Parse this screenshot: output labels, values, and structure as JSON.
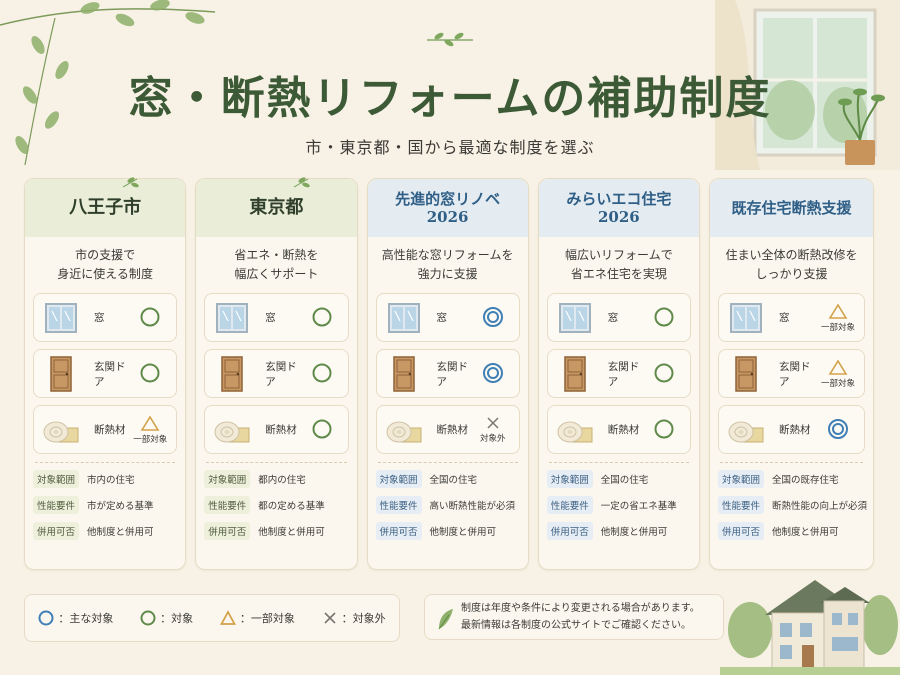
{
  "title": "窓・断熱リフォームの補助制度",
  "subtitle": "市・東京都・国から最適な制度を選ぶ",
  "item_labels": {
    "window": "窓",
    "door": "玄関ドア",
    "insulation": "断熱材"
  },
  "req_labels": {
    "scope": "対象範囲",
    "performance": "性能要件",
    "combination": "併用可否"
  },
  "columns": [
    {
      "name": "八王子市",
      "desc1": "市の支援で",
      "desc2": "身近に使える制度",
      "window": "circle",
      "window_note": "",
      "door": "circle",
      "door_note": "",
      "insulation": "triangle",
      "insulation_note": "一部対象",
      "scope": "市内の住宅",
      "performance": "市が定める基準",
      "combination": "他制度と併用可"
    },
    {
      "name": "東京都",
      "desc1": "省エネ・断熱を",
      "desc2": "幅広くサポート",
      "window": "circle",
      "window_note": "",
      "door": "circle",
      "door_note": "",
      "insulation": "circle",
      "insulation_note": "",
      "scope": "都内の住宅",
      "performance": "都の定める基準",
      "combination": "他制度と併用可"
    },
    {
      "name": "先進的窓リノベ",
      "name2": "2026",
      "desc1": "高性能な窓リフォームを",
      "desc2": "強力に支援",
      "window": "double",
      "window_note": "",
      "door": "double",
      "door_note": "",
      "insulation": "cross",
      "insulation_note": "対象外",
      "scope": "全国の住宅",
      "performance": "高い断熱性能が必須",
      "combination": "他制度と併用可"
    },
    {
      "name": "みらいエコ住宅",
      "name2": "2026",
      "desc1": "幅広いリフォームで",
      "desc2": "省エネ住宅を実現",
      "window": "circle",
      "window_note": "",
      "door": "circle",
      "door_note": "",
      "insulation": "circle",
      "insulation_note": "",
      "scope": "全国の住宅",
      "performance": "一定の省エネ基準",
      "combination": "他制度と併用可"
    },
    {
      "name": "既存住宅断熱支援",
      "desc1": "住まい全体の断熱改修を",
      "desc2": "しっかり支援",
      "window": "triangle",
      "window_note": "一部対象",
      "door": "triangle",
      "door_note": "一部対象",
      "insulation": "double",
      "insulation_note": "",
      "scope": "全国の既存住宅",
      "performance": "断熱性能の向上が必須",
      "combination": "他制度と併用可"
    }
  ],
  "legend": {
    "main": "：主な対象",
    "target": "：対象",
    "partial": "：一部対象",
    "excluded": "：対象外"
  },
  "notes": {
    "line1": "制度は年度や条件により変更される場合があります。",
    "line2": "最新情報は各制度の公式サイトでご確認ください。"
  },
  "colors": {
    "green_mark": "#5f8a4a",
    "blue_mark": "#3f7fb6",
    "triangle": "#d3a24a",
    "cross": "#7a7670",
    "title": "#3d5a36"
  }
}
